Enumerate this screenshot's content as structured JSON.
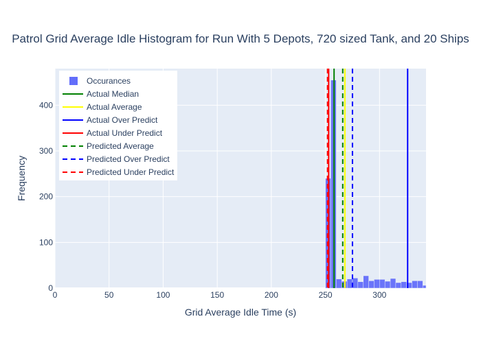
{
  "chart_data": {
    "type": "bar",
    "title": "Patrol Grid Average Idle Histogram for Run With 5 Depots, 720 sized Tank, and 20 Ships",
    "xlabel": "Grid Average Idle Time (s)",
    "ylabel": "Frequency",
    "xlim": [
      0,
      343
    ],
    "ylim": [
      0,
      480
    ],
    "x_ticks": [
      0,
      50,
      100,
      150,
      200,
      250,
      300
    ],
    "y_ticks": [
      0,
      100,
      200,
      300,
      400
    ],
    "grid": true,
    "legend_position": "top-left",
    "bin_width": 5,
    "bars": [
      {
        "x0": 250,
        "count": 240
      },
      {
        "x0": 255,
        "count": 455
      },
      {
        "x0": 260,
        "count": 20
      },
      {
        "x0": 265,
        "count": 15
      },
      {
        "x0": 270,
        "count": 20
      },
      {
        "x0": 275,
        "count": 22
      },
      {
        "x0": 280,
        "count": 14
      },
      {
        "x0": 285,
        "count": 27
      },
      {
        "x0": 290,
        "count": 16
      },
      {
        "x0": 295,
        "count": 19
      },
      {
        "x0": 300,
        "count": 19
      },
      {
        "x0": 305,
        "count": 15
      },
      {
        "x0": 310,
        "count": 21
      },
      {
        "x0": 315,
        "count": 12
      },
      {
        "x0": 320,
        "count": 14
      },
      {
        "x0": 325,
        "count": 12
      },
      {
        "x0": 330,
        "count": 16
      },
      {
        "x0": 335,
        "count": 16
      },
      {
        "x0": 340,
        "count": 6
      }
    ],
    "series": [
      {
        "name": "Occurances",
        "kind": "bar",
        "color": "#636efa"
      },
      {
        "name": "Actual Median",
        "kind": "vline",
        "x": 258,
        "style": "solid",
        "color": "#008000"
      },
      {
        "name": "Actual Average",
        "kind": "vline",
        "x": 268,
        "style": "solid",
        "color": "#ffff00"
      },
      {
        "name": "Actual Over Predict",
        "kind": "vline",
        "x": 326,
        "style": "solid",
        "color": "#0000ff"
      },
      {
        "name": "Actual Under Predict",
        "kind": "vline",
        "x": 253,
        "style": "solid",
        "color": "#ff0000"
      },
      {
        "name": "Predicted Average",
        "kind": "vline",
        "x": 266,
        "style": "dash",
        "color": "#008000"
      },
      {
        "name": "Predicted Over Predict",
        "kind": "vline",
        "x": 275,
        "style": "dash",
        "color": "#0000ff"
      },
      {
        "name": "Predicted Under Predict",
        "kind": "vline",
        "x": 252,
        "style": "dash",
        "color": "#ff0000"
      }
    ]
  }
}
